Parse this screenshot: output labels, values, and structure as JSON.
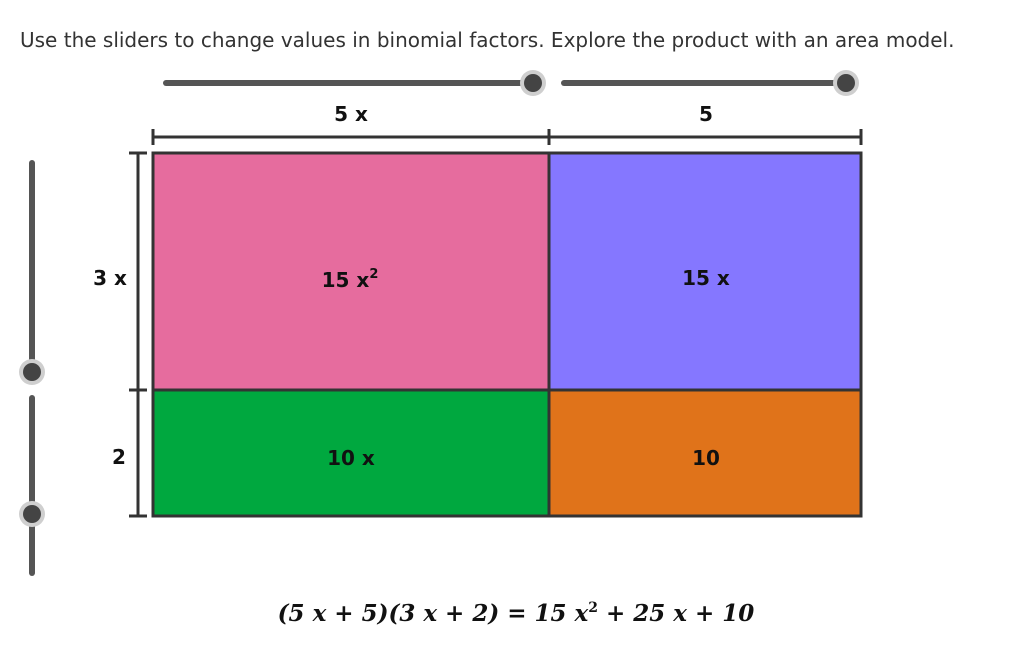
{
  "instructions": "Use the sliders to change values in binomial factors. Explore the product with an area model.",
  "sliders": {
    "top_left": {
      "value": 1.0
    },
    "top_right": {
      "value": 1.0
    },
    "left_upper": {
      "value": 0.0
    },
    "left_lower": {
      "value": 0.35
    }
  },
  "dimensions": {
    "top_1": "5 x",
    "top_2": "5",
    "side_1": "3 x",
    "side_2": "2"
  },
  "regions": {
    "r11": {
      "text": "15 x",
      "sup": "2",
      "color": "#E66C9E"
    },
    "r12": {
      "text": "15 x",
      "color": "#8577FF"
    },
    "r21": {
      "text": "10 x",
      "color": "#00A83F"
    },
    "r22": {
      "text": "10",
      "color": "#E0731A"
    }
  },
  "equation": {
    "lhs": "(5 x + 5)(3 x + 2) = 15 x",
    "sup": "2",
    "rhs": " + 25 x + 10"
  },
  "colors": {
    "slider_track": "#555555",
    "slider_knob": "#444444",
    "outline": "#333333"
  }
}
